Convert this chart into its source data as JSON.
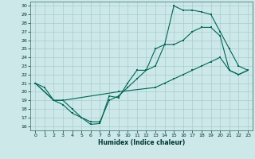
{
  "xlabel": "Humidex (Indice chaleur)",
  "bg_color": "#cce8e8",
  "grid_color": "#aacccc",
  "line_color": "#006655",
  "xlim": [
    -0.5,
    23.5
  ],
  "ylim": [
    15.5,
    30.5
  ],
  "xticks": [
    0,
    1,
    2,
    3,
    4,
    5,
    6,
    7,
    8,
    9,
    10,
    11,
    12,
    13,
    14,
    15,
    16,
    17,
    18,
    19,
    20,
    21,
    22,
    23
  ],
  "yticks": [
    16,
    17,
    18,
    19,
    20,
    21,
    22,
    23,
    24,
    25,
    26,
    27,
    28,
    29,
    30
  ],
  "line1_x": [
    0,
    1,
    2,
    3,
    4,
    5,
    6,
    7,
    8,
    9,
    10,
    11,
    12,
    13,
    14,
    15,
    16,
    17,
    18,
    19,
    20,
    21,
    22,
    23
  ],
  "line1_y": [
    21.0,
    20.5,
    19.0,
    18.5,
    17.5,
    17.0,
    16.2,
    16.3,
    19.5,
    19.3,
    21.0,
    22.5,
    22.5,
    25.0,
    25.5,
    30.0,
    29.5,
    29.5,
    29.3,
    29.0,
    27.0,
    25.0,
    23.0,
    22.5
  ],
  "line2_x": [
    0,
    2,
    3,
    4,
    5,
    6,
    7,
    8,
    9,
    10,
    11,
    12,
    13,
    14,
    15,
    16,
    17,
    18,
    19,
    20,
    21,
    22,
    23
  ],
  "line2_y": [
    21.0,
    19.0,
    19.0,
    18.0,
    17.0,
    16.5,
    16.5,
    19.0,
    19.5,
    20.5,
    21.5,
    22.5,
    23.0,
    25.5,
    25.5,
    26.0,
    27.0,
    27.5,
    27.5,
    26.5,
    22.5,
    22.0,
    22.5
  ],
  "line3_x": [
    0,
    2,
    3,
    9,
    13,
    14,
    15,
    16,
    17,
    18,
    19,
    20,
    21,
    22,
    23
  ],
  "line3_y": [
    21.0,
    19.0,
    19.0,
    20.0,
    20.5,
    21.0,
    21.5,
    22.0,
    22.5,
    23.0,
    23.5,
    24.0,
    22.5,
    22.0,
    22.5
  ]
}
